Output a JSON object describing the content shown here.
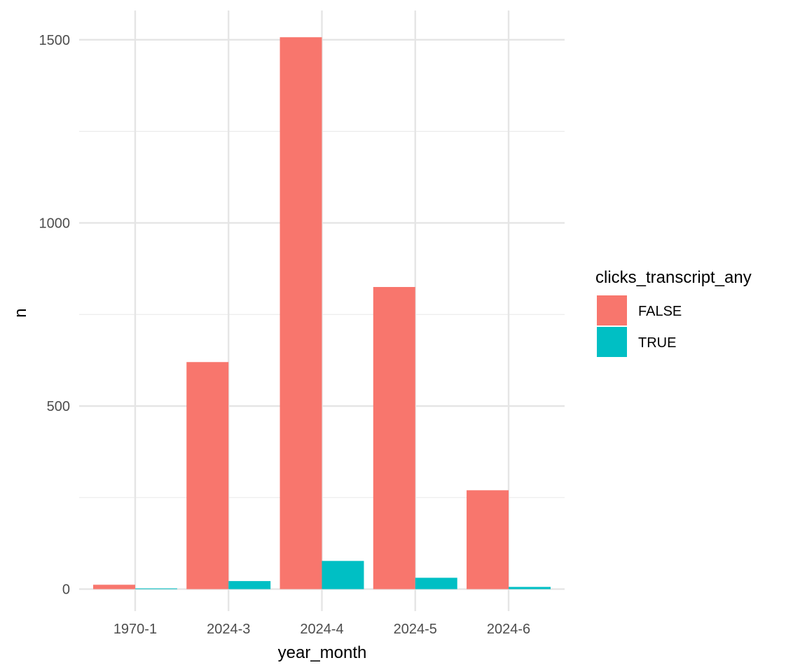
{
  "chart_data": {
    "type": "bar",
    "xlabel": "year_month",
    "ylabel": "n",
    "categories": [
      "1970-1",
      "2024-3",
      "2024-4",
      "2024-5",
      "2024-6"
    ],
    "y_ticks": [
      "0",
      "500",
      "1000",
      "1500"
    ],
    "ylim": [
      -60,
      1580
    ],
    "grid": true,
    "legend": {
      "title": "clicks_transcript_any",
      "position": "right"
    },
    "series": [
      {
        "name": "FALSE",
        "color": "#F8766D",
        "values": [
          12,
          620,
          1507,
          825,
          270
        ]
      },
      {
        "name": "TRUE",
        "color": "#00BFC4",
        "values": [
          2,
          22,
          77,
          31,
          6
        ]
      }
    ]
  }
}
